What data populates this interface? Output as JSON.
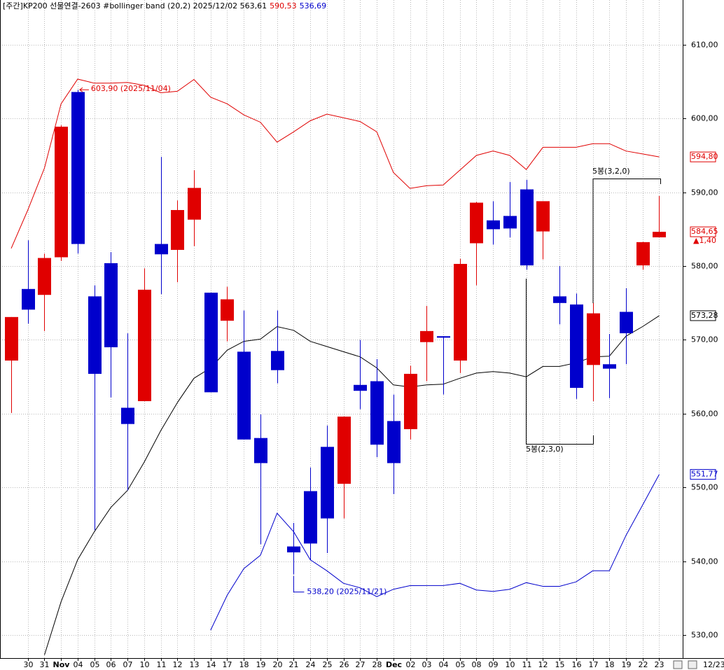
{
  "chart_data": {
    "type": "candlestick",
    "title": "[주간]KP200 선물연결-2603 #bollinger band  (20,2) 2025/12/02 563,61",
    "upper_label": "590,53",
    "lower_label": "536,69",
    "categories": [
      null,
      "30",
      "31",
      "Nov",
      "04",
      "05",
      "06",
      "07",
      "10",
      "11",
      "12",
      "13",
      "14",
      "17",
      "18",
      "19",
      "20",
      "21",
      "24",
      "25",
      "26",
      "27",
      "28",
      "Dec",
      "02",
      "03",
      "04",
      "05",
      "08",
      "09",
      "10",
      "11",
      "12",
      "15",
      "16",
      "17",
      "18",
      "19",
      "22",
      "23"
    ],
    "open": [
      567.2,
      576.9,
      576.1,
      581.2,
      603.6,
      575.9,
      580.4,
      560.8,
      561.7,
      583.0,
      582.2,
      586.3,
      576.4,
      572.6,
      568.4,
      556.7,
      568.5,
      542.0,
      549.5,
      555.5,
      550.5,
      563.9,
      564.4,
      559.0,
      557.9,
      569.7,
      570.5,
      567.2,
      583.1,
      586.2,
      586.8,
      590.4,
      584.7,
      575.9,
      574.8,
      566.6,
      566.7,
      573.8,
      580.1,
      583.9
    ],
    "high": [
      573.1,
      583.5,
      581.7,
      599.1,
      603.9,
      577.4,
      581.9,
      570.9,
      579.7,
      594.8,
      588.9,
      593.0,
      576.4,
      577.2,
      574.0,
      559.9,
      574.0,
      545.2,
      552.7,
      558.4,
      559.6,
      570.0,
      567.4,
      562.6,
      566.5,
      574.6,
      570.5,
      581.0,
      588.7,
      588.8,
      591.4,
      591.7,
      588.8,
      580.0,
      576.3,
      575.0,
      570.8,
      577.0,
      583.3,
      589.5
    ],
    "low": [
      560.1,
      572.2,
      571.2,
      580.7,
      581.7,
      544.2,
      562.2,
      549.6,
      561.7,
      576.2,
      577.8,
      582.7,
      562.9,
      569.8,
      556.5,
      542.3,
      564.1,
      538.2,
      540.2,
      541.1,
      545.8,
      560.6,
      554.1,
      549.1,
      556.5,
      564.4,
      562.6,
      565.5,
      577.4,
      582.9,
      583.9,
      579.5,
      580.9,
      572.1,
      562.0,
      561.7,
      562.1,
      566.7,
      579.5,
      583.9
    ],
    "close": [
      573.1,
      574.1,
      581.1,
      598.9,
      583.0,
      565.4,
      569.0,
      558.6,
      576.8,
      581.6,
      587.6,
      590.6,
      562.9,
      575.5,
      556.5,
      553.3,
      565.9,
      541.2,
      542.4,
      545.8,
      559.6,
      563.1,
      555.8,
      553.3,
      565.4,
      571.2,
      570.3,
      580.3,
      588.6,
      585.0,
      585.1,
      580.1,
      588.8,
      575.0,
      563.5,
      573.6,
      566.1,
      570.9,
      583.25,
      584.65
    ],
    "up_color": "#e00000",
    "down_color": "#0000cc",
    "lines": [
      {
        "color": "#e00000",
        "end_label": "594,80",
        "values": [
          582.4,
          587.6,
          593.3,
          602.0,
          605.35,
          604.8,
          604.8,
          604.9,
          604.5,
          603.5,
          603.7,
          605.3,
          602.9,
          602.0,
          600.5,
          599.5,
          596.8,
          598.2,
          599.7,
          600.6,
          600.1,
          599.6,
          598.2,
          592.7,
          590.53,
          590.9,
          591.0,
          593.0,
          595.0,
          595.6,
          595.0,
          593.1,
          596.1,
          596.1,
          596.1,
          596.6,
          596.6,
          595.6,
          595.2,
          594.8
        ]
      },
      {
        "color": "#000000",
        "end_label": "573,28",
        "values": [
          null,
          null,
          527.3,
          534.5,
          540.2,
          544.0,
          547.3,
          549.6,
          553.4,
          557.7,
          561.5,
          564.8,
          566.2,
          568.6,
          569.8,
          570.1,
          571.8,
          571.3,
          569.8,
          569.1,
          568.4,
          567.7,
          566.2,
          563.9,
          563.61,
          563.9,
          564.0,
          564.8,
          565.5,
          565.7,
          565.5,
          565.0,
          566.4,
          566.4,
          566.9,
          567.7,
          567.8,
          570.5,
          571.8,
          573.28
        ]
      },
      {
        "color": "#0000cc",
        "end_label": "551,77",
        "values": [
          null,
          null,
          null,
          null,
          null,
          null,
          null,
          null,
          null,
          null,
          null,
          null,
          530.66,
          535.4,
          539.0,
          540.8,
          546.5,
          544.0,
          540.2,
          538.7,
          537.0,
          536.4,
          535.2,
          536.2,
          536.69,
          536.7,
          536.7,
          537.0,
          536.1,
          535.9,
          536.2,
          537.1,
          536.6,
          536.6,
          537.2,
          538.7,
          538.7,
          543.5,
          547.6,
          551.77
        ]
      }
    ],
    "close_label": "584,65",
    "change": {
      "value": 1.4,
      "label": "▲1,40"
    },
    "annotations": [
      {
        "value": 603.9,
        "label": "603,90 (2025/11/04)",
        "color": "#e00000"
      },
      {
        "value": 538.2,
        "label": "538,20 (2025/11/21)",
        "color": "#0000cc"
      }
    ],
    "brackets": [
      "5봉(3,2,0)",
      "5봉(2,3,0)"
    ],
    "current_date": "12/23",
    "ylim": [
      526.87,
      616.07
    ],
    "yticks": [
      {
        "value": 530,
        "label": "530,00"
      },
      {
        "value": 540,
        "label": "540,00"
      },
      {
        "value": 550,
        "label": "550,00"
      },
      {
        "value": 560,
        "label": "560,00"
      },
      {
        "value": 570,
        "label": "570,00"
      },
      {
        "value": 580,
        "label": "580,00"
      },
      {
        "value": 590,
        "label": "590,00"
      },
      {
        "value": 600,
        "label": "600,00"
      },
      {
        "value": 610,
        "label": "610,00"
      }
    ],
    "grid": true
  }
}
